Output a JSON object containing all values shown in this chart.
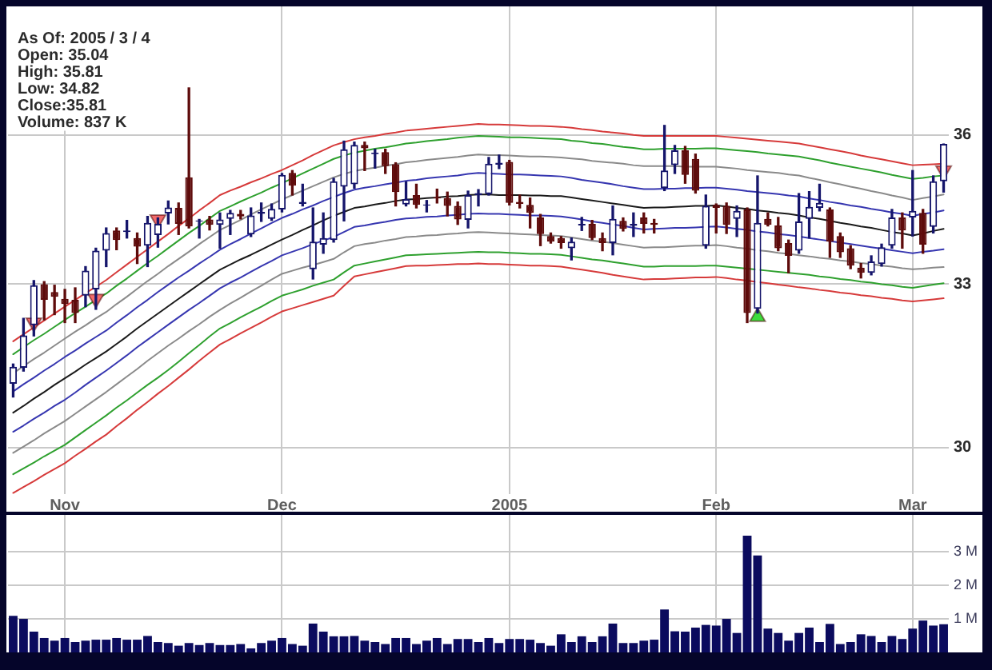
{
  "chart_data": [
    {
      "type": "candlestick",
      "categories": [
        null,
        null,
        null,
        null,
        null,
        "Nov",
        null,
        null,
        null,
        null,
        null,
        null,
        null,
        null,
        null,
        null,
        null,
        null,
        null,
        null,
        null,
        null,
        null,
        null,
        null,
        null,
        "Dec",
        null,
        null,
        null,
        null,
        null,
        null,
        null,
        null,
        null,
        null,
        null,
        null,
        null,
        null,
        null,
        null,
        null,
        null,
        null,
        null,
        null,
        "2005",
        null,
        null,
        null,
        null,
        null,
        null,
        null,
        null,
        null,
        null,
        null,
        null,
        null,
        null,
        null,
        null,
        null,
        null,
        null,
        "Feb",
        null,
        null,
        null,
        null,
        null,
        null,
        null,
        null,
        null,
        null,
        null,
        null,
        null,
        null,
        null,
        null,
        null,
        null,
        "Mar",
        null,
        null,
        null
      ],
      "ylim": [
        29.2,
        38.8
      ],
      "yticks": [
        30,
        33,
        36
      ],
      "log": true,
      "grid": true,
      "annotations": [
        "As Of: 2005 / 3 / 4",
        "Open: 35.04",
        "High: 35.81",
        "Low: 34.82",
        "Close:35.81",
        "Volume: 837 K"
      ],
      "series": [
        {
          "ohlc": [
            [
              31.14,
              31.5,
              30.9,
              31.45
            ],
            [
              31.43,
              32.35,
              31.37,
              32.03
            ],
            [
              32.22,
              33.07,
              32.02,
              32.98
            ],
            [
              33.0,
              33.05,
              32.32,
              32.7
            ],
            [
              32.85,
              32.98,
              32.42,
              32.76
            ],
            [
              32.72,
              32.9,
              32.27,
              32.62
            ],
            [
              32.7,
              32.93,
              32.27,
              32.45
            ],
            [
              32.78,
              33.34,
              32.57,
              33.26
            ],
            [
              32.9,
              33.7,
              32.52,
              33.65
            ],
            [
              33.65,
              34.1,
              33.34,
              34.0
            ],
            [
              34.05,
              34.1,
              33.67,
              33.86
            ],
            [
              34.02,
              34.25,
              33.9,
              34.05
            ],
            [
              33.9,
              34.0,
              33.4,
              33.73
            ],
            [
              33.75,
              34.33,
              33.34,
              34.2
            ],
            [
              33.96,
              34.3,
              33.72,
              34.18
            ],
            [
              34.39,
              34.64,
              34.18,
              34.51
            ],
            [
              34.5,
              34.6,
              33.97,
              34.18
            ],
            [
              35.12,
              37.0,
              34.1,
              34.13
            ],
            [
              34.23,
              34.27,
              33.9,
              34.25
            ],
            [
              34.27,
              34.33,
              34.06,
              34.16
            ],
            [
              34.16,
              34.4,
              33.7,
              34.27
            ],
            [
              34.28,
              34.45,
              33.97,
              34.4
            ],
            [
              34.38,
              34.45,
              34.28,
              34.33
            ],
            [
              33.97,
              34.5,
              33.93,
              34.35
            ],
            [
              34.38,
              34.6,
              34.23,
              34.42
            ],
            [
              34.28,
              34.58,
              34.25,
              34.48
            ],
            [
              34.47,
              35.2,
              34.42,
              35.17
            ],
            [
              35.21,
              35.26,
              34.76,
              34.95
            ],
            [
              34.58,
              34.98,
              34.54,
              34.62
            ],
            [
              33.29,
              34.5,
              33.1,
              33.83
            ],
            [
              33.77,
              34.4,
              33.6,
              33.9
            ],
            [
              33.86,
              35.1,
              33.82,
              35.04
            ],
            [
              34.93,
              35.87,
              34.24,
              35.7
            ],
            [
              34.98,
              35.85,
              34.9,
              35.79
            ],
            [
              35.79,
              35.85,
              35.26,
              35.72
            ],
            [
              35.6,
              35.7,
              35.31,
              35.63
            ],
            [
              35.64,
              35.7,
              35.2,
              35.35
            ],
            [
              35.39,
              35.42,
              34.54,
              34.82
            ],
            [
              34.57,
              35.03,
              34.54,
              34.68
            ],
            [
              34.76,
              34.98,
              34.5,
              34.56
            ],
            [
              34.55,
              34.65,
              34.42,
              34.57
            ],
            [
              34.72,
              34.88,
              34.6,
              34.69
            ],
            [
              34.7,
              34.82,
              34.34,
              34.54
            ],
            [
              34.54,
              34.62,
              34.17,
              34.27
            ],
            [
              34.26,
              34.84,
              34.1,
              34.76
            ],
            [
              34.76,
              34.87,
              34.54,
              34.8
            ],
            [
              34.78,
              35.53,
              34.76,
              35.4
            ],
            [
              35.38,
              35.58,
              35.3,
              35.42
            ],
            [
              35.44,
              35.47,
              34.56,
              34.6
            ],
            [
              34.62,
              34.76,
              34.5,
              34.58
            ],
            [
              34.56,
              34.7,
              34.1,
              34.4
            ],
            [
              34.31,
              34.37,
              33.75,
              33.98
            ],
            [
              33.94,
              34.0,
              33.8,
              33.83
            ],
            [
              33.9,
              33.93,
              33.7,
              33.8
            ],
            [
              33.7,
              33.9,
              33.47,
              33.83
            ],
            [
              34.15,
              34.31,
              34.05,
              34.18
            ],
            [
              34.18,
              34.25,
              33.87,
              33.9
            ],
            [
              33.9,
              34.0,
              33.65,
              33.8
            ],
            [
              33.8,
              34.54,
              33.57,
              34.28
            ],
            [
              34.24,
              34.3,
              34.04,
              34.08
            ],
            [
              34.14,
              34.4,
              33.93,
              34.18
            ],
            [
              34.31,
              34.4,
              34.0,
              34.18
            ],
            [
              34.2,
              34.27,
              34.0,
              34.16
            ],
            [
              34.9,
              36.2,
              34.85,
              35.26
            ],
            [
              35.37,
              35.78,
              35.2,
              35.68
            ],
            [
              35.68,
              35.76,
              35.0,
              35.17
            ],
            [
              35.5,
              35.6,
              34.8,
              34.85
            ],
            [
              33.75,
              34.76,
              33.7,
              34.54
            ],
            [
              34.56,
              34.58,
              34.0,
              34.5
            ],
            [
              34.54,
              34.6,
              33.99,
              34.16
            ],
            [
              34.28,
              34.54,
              33.93,
              34.44
            ],
            [
              34.47,
              34.5,
              32.27,
              32.45
            ],
            [
              32.53,
              35.15,
              32.45,
              34.2
            ],
            [
              34.28,
              34.4,
              34.14,
              34.16
            ],
            [
              34.15,
              34.31,
              33.65,
              33.7
            ],
            [
              33.8,
              33.86,
              33.22,
              33.55
            ],
            [
              33.65,
              34.79,
              33.6,
              34.23
            ],
            [
              34.28,
              34.83,
              33.9,
              34.52
            ],
            [
              34.5,
              34.98,
              34.44,
              34.6
            ],
            [
              34.47,
              34.5,
              33.52,
              33.83
            ],
            [
              33.94,
              34.0,
              33.52,
              33.62
            ],
            [
              33.7,
              33.75,
              33.3,
              33.36
            ],
            [
              33.32,
              33.4,
              33.12,
              33.22
            ],
            [
              33.22,
              33.55,
              33.18,
              33.44
            ],
            [
              33.39,
              33.78,
              33.35,
              33.72
            ],
            [
              33.75,
              34.47,
              33.7,
              34.31
            ],
            [
              34.31,
              34.4,
              33.7,
              34.05
            ],
            [
              34.31,
              35.26,
              33.94,
              34.44
            ],
            [
              34.4,
              34.47,
              33.6,
              33.77
            ],
            [
              34.12,
              35.15,
              34.0,
              35.04
            ],
            [
              35.04,
              35.81,
              34.82,
              35.81
            ]
          ],
          "colors": [
            "#15156b",
            "#15156b",
            "#15156b",
            "#5e0b0b",
            "#5e0b0b",
            "#5e0b0b",
            "#5e0b0b",
            "#15156b",
            "#15156b",
            "#15156b",
            "#5e0b0b",
            "#15156b",
            "#5e0b0b",
            "#15156b",
            "#15156b",
            "#15156b",
            "#5e0b0b",
            "#5e0b0b",
            "#15156b",
            "#5e0b0b",
            "#15156b",
            "#15156b",
            "#5e0b0b",
            "#15156b",
            "#15156b",
            "#15156b",
            "#15156b",
            "#5e0b0b",
            "#15156b",
            "#15156b",
            "#15156b",
            "#15156b",
            "#15156b",
            "#15156b",
            "#5e0b0b",
            "#15156b",
            "#5e0b0b",
            "#5e0b0b",
            "#15156b",
            "#5e0b0b",
            "#15156b",
            "#5e0b0b",
            "#5e0b0b",
            "#5e0b0b",
            "#15156b",
            "#15156b",
            "#15156b",
            "#15156b",
            "#5e0b0b",
            "#5e0b0b",
            "#5e0b0b",
            "#5e0b0b",
            "#5e0b0b",
            "#5e0b0b",
            "#15156b",
            "#15156b",
            "#5e0b0b",
            "#5e0b0b",
            "#15156b",
            "#5e0b0b",
            "#15156b",
            "#5e0b0b",
            "#5e0b0b",
            "#15156b",
            "#15156b",
            "#5e0b0b",
            "#5e0b0b",
            "#15156b",
            "#5e0b0b",
            "#5e0b0b",
            "#15156b",
            "#5e0b0b",
            "#15156b",
            "#5e0b0b",
            "#5e0b0b",
            "#5e0b0b",
            "#15156b",
            "#15156b",
            "#15156b",
            "#5e0b0b",
            "#5e0b0b",
            "#5e0b0b",
            "#5e0b0b",
            "#15156b",
            "#15156b",
            "#15156b",
            "#5e0b0b",
            "#15156b",
            "#5e0b0b",
            "#15156b",
            "#15156b"
          ]
        },
        {
          "type": "line",
          "color": "#d63a3a",
          "values": [
            31.92,
            32.05,
            32.18,
            32.31,
            32.44,
            32.57,
            32.7,
            32.83,
            32.95,
            33.08,
            33.23,
            33.38,
            33.53,
            33.68,
            33.83,
            33.98,
            34.14,
            34.29,
            34.45,
            34.6,
            34.76,
            34.85,
            34.93,
            35.02,
            35.1,
            35.19,
            35.27,
            35.37,
            35.47,
            35.58,
            35.68,
            35.78,
            35.85,
            35.91,
            35.95,
            35.98,
            36.02,
            36.05,
            36.09,
            36.11,
            36.13,
            36.15,
            36.17,
            36.19,
            36.21,
            36.23,
            36.22,
            36.22,
            36.21,
            36.2,
            36.19,
            36.19,
            36.18,
            36.17,
            36.15,
            36.12,
            36.1,
            36.07,
            36.05,
            36.03,
            36.0,
            35.98,
            35.98,
            35.98,
            35.98,
            35.98,
            35.98,
            35.98,
            35.98,
            35.96,
            35.94,
            35.92,
            35.9,
            35.88,
            35.86,
            35.84,
            35.82,
            35.78,
            35.74,
            35.7,
            35.66,
            35.62,
            35.57,
            35.53,
            35.49,
            35.45,
            35.41,
            35.37,
            35.38,
            35.39,
            35.4
          ]
        },
        {
          "type": "line",
          "color": "#2ea02e",
          "values": [
            31.68,
            31.81,
            31.94,
            32.06,
            32.19,
            32.32,
            32.45,
            32.57,
            32.7,
            32.82,
            32.97,
            33.11,
            33.26,
            33.41,
            33.55,
            33.7,
            33.85,
            34.0,
            34.14,
            34.29,
            34.44,
            34.53,
            34.63,
            34.72,
            34.81,
            34.91,
            35.0,
            35.1,
            35.2,
            35.3,
            35.4,
            35.5,
            35.57,
            35.63,
            35.67,
            35.71,
            35.74,
            35.78,
            35.82,
            35.84,
            35.87,
            35.89,
            35.91,
            35.94,
            35.96,
            35.98,
            35.97,
            35.96,
            35.95,
            35.95,
            35.94,
            35.93,
            35.92,
            35.91,
            35.88,
            35.86,
            35.83,
            35.81,
            35.78,
            35.75,
            35.73,
            35.7,
            35.7,
            35.71,
            35.71,
            35.71,
            35.71,
            35.72,
            35.72,
            35.7,
            35.68,
            35.66,
            35.64,
            35.61,
            35.59,
            35.57,
            35.55,
            35.51,
            35.47,
            35.42,
            35.38,
            35.34,
            35.3,
            35.26,
            35.22,
            35.17,
            35.13,
            35.09,
            35.11,
            35.14,
            35.16
          ]
        },
        {
          "type": "line",
          "color": "#8a8a8a",
          "values": [
            31.33,
            31.46,
            31.59,
            31.71,
            31.84,
            31.97,
            32.1,
            32.22,
            32.35,
            32.47,
            32.62,
            32.76,
            32.91,
            33.06,
            33.2,
            33.35,
            33.49,
            33.63,
            33.78,
            33.92,
            34.06,
            34.16,
            34.26,
            34.37,
            34.47,
            34.57,
            34.67,
            34.76,
            34.85,
            34.94,
            35.03,
            35.12,
            35.19,
            35.25,
            35.29,
            35.32,
            35.36,
            35.39,
            35.43,
            35.45,
            35.48,
            35.5,
            35.52,
            35.54,
            35.57,
            35.59,
            35.58,
            35.58,
            35.57,
            35.56,
            35.55,
            35.55,
            35.54,
            35.53,
            35.51,
            35.49,
            35.46,
            35.44,
            35.42,
            35.4,
            35.37,
            35.35,
            35.35,
            35.35,
            35.35,
            35.34,
            35.34,
            35.34,
            35.34,
            35.32,
            35.3,
            35.27,
            35.25,
            35.23,
            35.21,
            35.18,
            35.16,
            35.11,
            35.07,
            35.02,
            34.98,
            34.93,
            34.89,
            34.84,
            34.8,
            34.75,
            34.71,
            34.66,
            34.7,
            34.73,
            34.77
          ]
        },
        {
          "type": "line",
          "color": "#3636b0",
          "values": [
            31.0,
            31.13,
            31.25,
            31.38,
            31.5,
            31.63,
            31.75,
            31.88,
            32.0,
            32.12,
            32.27,
            32.41,
            32.56,
            32.7,
            32.85,
            32.99,
            33.13,
            33.26,
            33.4,
            33.53,
            33.67,
            33.78,
            33.88,
            33.99,
            34.09,
            34.2,
            34.3,
            34.38,
            34.47,
            34.55,
            34.64,
            34.72,
            34.8,
            34.87,
            34.91,
            34.94,
            34.98,
            35.01,
            35.05,
            35.07,
            35.1,
            35.12,
            35.14,
            35.16,
            35.19,
            35.21,
            35.2,
            35.19,
            35.18,
            35.18,
            35.17,
            35.16,
            35.15,
            35.14,
            35.11,
            35.07,
            35.04,
            35.01,
            34.98,
            34.94,
            34.91,
            34.88,
            34.88,
            34.89,
            34.89,
            34.9,
            34.9,
            34.91,
            34.91,
            34.89,
            34.87,
            34.84,
            34.82,
            34.8,
            34.78,
            34.75,
            34.73,
            34.69,
            34.66,
            34.62,
            34.59,
            34.55,
            34.52,
            34.48,
            34.45,
            34.41,
            34.38,
            34.34,
            34.38,
            34.41,
            34.45
          ]
        },
        {
          "type": "line",
          "color": "#1a1a1a",
          "values": [
            30.62,
            30.74,
            30.87,
            30.99,
            31.12,
            31.24,
            31.36,
            31.49,
            31.61,
            31.73,
            31.87,
            32.01,
            32.16,
            32.3,
            32.44,
            32.58,
            32.72,
            32.86,
            33.0,
            33.14,
            33.28,
            33.38,
            33.48,
            33.57,
            33.67,
            33.77,
            33.87,
            33.96,
            34.06,
            34.15,
            34.25,
            34.34,
            34.42,
            34.5,
            34.53,
            34.57,
            34.6,
            34.64,
            34.67,
            34.68,
            34.7,
            34.71,
            34.73,
            34.74,
            34.76,
            34.77,
            34.77,
            34.76,
            34.76,
            34.76,
            34.75,
            34.75,
            34.74,
            34.74,
            34.71,
            34.68,
            34.65,
            34.62,
            34.59,
            34.56,
            34.53,
            34.5,
            34.51,
            34.51,
            34.52,
            34.53,
            34.54,
            34.54,
            34.55,
            34.53,
            34.5,
            34.48,
            34.45,
            34.43,
            34.4,
            34.38,
            34.35,
            34.31,
            34.28,
            34.24,
            34.2,
            34.17,
            34.13,
            34.1,
            34.06,
            34.02,
            33.99,
            33.95,
            33.99,
            34.04,
            34.08
          ]
        },
        {
          "type": "line",
          "color": "#3636b0",
          "values": [
            30.28,
            30.39,
            30.51,
            30.62,
            30.74,
            30.85,
            30.98,
            31.12,
            31.25,
            31.38,
            31.52,
            31.66,
            31.81,
            31.95,
            32.09,
            32.23,
            32.37,
            32.51,
            32.64,
            32.78,
            32.92,
            33.03,
            33.13,
            33.24,
            33.35,
            33.45,
            33.56,
            33.63,
            33.7,
            33.78,
            33.85,
            33.92,
            34.02,
            34.12,
            34.15,
            34.19,
            34.22,
            34.26,
            34.29,
            34.3,
            34.32,
            34.33,
            34.35,
            34.36,
            34.38,
            34.39,
            34.38,
            34.38,
            34.37,
            34.36,
            34.35,
            34.35,
            34.34,
            34.33,
            34.3,
            34.27,
            34.23,
            34.2,
            34.17,
            34.14,
            34.1,
            34.07,
            34.08,
            34.09,
            34.1,
            34.1,
            34.11,
            34.12,
            34.13,
            34.11,
            34.08,
            34.06,
            34.03,
            34.01,
            33.98,
            33.96,
            33.93,
            33.9,
            33.87,
            33.84,
            33.81,
            33.78,
            33.75,
            33.72,
            33.69,
            33.66,
            33.63,
            33.6,
            33.63,
            33.65,
            33.68
          ]
        },
        {
          "type": "line",
          "color": "#8a8a8a",
          "values": [
            29.91,
            30.02,
            30.13,
            30.25,
            30.36,
            30.47,
            30.6,
            30.73,
            30.86,
            30.99,
            31.13,
            31.27,
            31.41,
            31.56,
            31.7,
            31.84,
            31.97,
            32.11,
            32.24,
            32.38,
            32.51,
            32.63,
            32.74,
            32.86,
            32.97,
            33.09,
            33.2,
            33.26,
            33.32,
            33.37,
            33.43,
            33.49,
            33.62,
            33.74,
            33.78,
            33.81,
            33.85,
            33.88,
            33.92,
            33.93,
            33.95,
            33.96,
            33.98,
            33.99,
            34.01,
            34.02,
            34.01,
            34.0,
            33.99,
            33.98,
            33.97,
            33.96,
            33.95,
            33.94,
            33.91,
            33.88,
            33.85,
            33.83,
            33.8,
            33.77,
            33.74,
            33.71,
            33.72,
            33.72,
            33.73,
            33.74,
            33.75,
            33.75,
            33.76,
            33.74,
            33.71,
            33.69,
            33.66,
            33.64,
            33.61,
            33.59,
            33.56,
            33.54,
            33.51,
            33.49,
            33.46,
            33.44,
            33.41,
            33.39,
            33.36,
            33.34,
            33.31,
            33.29,
            33.3,
            33.32,
            33.33
          ]
        },
        {
          "type": "line",
          "color": "#2ea02e",
          "values": [
            29.54,
            29.64,
            29.74,
            29.85,
            29.95,
            30.05,
            30.18,
            30.31,
            30.44,
            30.57,
            30.71,
            30.84,
            30.98,
            31.12,
            31.25,
            31.39,
            31.54,
            31.7,
            31.85,
            32.01,
            32.16,
            32.26,
            32.37,
            32.47,
            32.57,
            32.68,
            32.78,
            32.84,
            32.9,
            32.97,
            33.03,
            33.09,
            33.23,
            33.36,
            33.4,
            33.44,
            33.48,
            33.52,
            33.56,
            33.57,
            33.58,
            33.59,
            33.6,
            33.61,
            33.62,
            33.63,
            33.62,
            33.62,
            33.61,
            33.6,
            33.59,
            33.59,
            33.58,
            33.57,
            33.54,
            33.51,
            33.48,
            33.46,
            33.43,
            33.4,
            33.37,
            33.34,
            33.34,
            33.35,
            33.35,
            33.35,
            33.35,
            33.36,
            33.36,
            33.34,
            33.32,
            33.3,
            33.28,
            33.26,
            33.24,
            33.22,
            33.2,
            33.18,
            33.15,
            33.13,
            33.1,
            33.08,
            33.05,
            33.03,
            33.0,
            32.98,
            32.95,
            32.93,
            32.96,
            32.99,
            33.02
          ]
        },
        {
          "type": "line",
          "color": "#d63a3a",
          "values": [
            29.22,
            29.32,
            29.42,
            29.53,
            29.63,
            29.73,
            29.86,
            29.98,
            30.11,
            30.23,
            30.38,
            30.52,
            30.67,
            30.81,
            30.96,
            31.1,
            31.25,
            31.4,
            31.56,
            31.71,
            31.86,
            31.96,
            32.07,
            32.17,
            32.27,
            32.38,
            32.48,
            32.54,
            32.6,
            32.66,
            32.72,
            32.78,
            32.97,
            33.15,
            33.19,
            33.23,
            33.27,
            33.31,
            33.35,
            33.36,
            33.36,
            33.37,
            33.38,
            33.39,
            33.39,
            33.4,
            33.39,
            33.39,
            33.38,
            33.37,
            33.36,
            33.36,
            33.35,
            33.34,
            33.31,
            33.28,
            33.25,
            33.22,
            33.18,
            33.15,
            33.12,
            33.09,
            33.1,
            33.1,
            33.11,
            33.12,
            33.13,
            33.13,
            33.14,
            33.12,
            33.09,
            33.07,
            33.04,
            33.02,
            32.99,
            32.97,
            32.94,
            32.92,
            32.89,
            32.87,
            32.84,
            32.82,
            32.79,
            32.77,
            32.74,
            32.72,
            32.69,
            32.67,
            32.69,
            32.71,
            32.73
          ]
        },
        {
          "type": "scatter",
          "color": "#f26b6b",
          "marker": "triangle",
          "values": [
            null,
            null,
            32.27,
            null,
            null,
            null,
            null,
            null,
            32.72,
            null,
            null,
            null,
            null,
            null,
            34.27,
            null,
            null,
            null,
            null,
            null,
            null,
            null,
            null,
            null,
            null,
            null,
            null,
            null,
            null,
            null,
            null,
            null,
            null,
            null,
            null,
            null,
            null,
            null,
            null,
            null,
            null,
            null,
            null,
            null,
            null,
            null,
            null,
            null,
            null,
            null,
            null,
            null,
            null,
            null,
            null,
            null,
            null,
            null,
            null,
            null,
            null,
            null,
            null,
            null,
            null,
            null,
            null,
            null,
            null,
            null,
            null,
            null,
            null,
            null,
            null,
            null,
            null,
            null,
            null,
            null,
            null,
            null,
            null,
            null,
            null,
            null,
            null,
            null,
            null,
            null,
            35.26
          ]
        },
        {
          "type": "scatter",
          "color": "#3ddc3d",
          "marker": "triangle",
          "values": [
            null,
            null,
            null,
            null,
            null,
            null,
            null,
            null,
            null,
            null,
            null,
            null,
            null,
            null,
            null,
            null,
            null,
            null,
            null,
            null,
            null,
            null,
            null,
            null,
            null,
            null,
            null,
            null,
            null,
            null,
            null,
            null,
            null,
            null,
            null,
            null,
            null,
            null,
            null,
            null,
            null,
            null,
            null,
            null,
            null,
            null,
            null,
            null,
            null,
            null,
            null,
            null,
            null,
            null,
            null,
            null,
            null,
            null,
            null,
            null,
            null,
            null,
            null,
            null,
            null,
            null,
            null,
            null,
            null,
            null,
            null,
            null,
            32.38,
            null,
            null,
            null,
            null,
            null,
            null,
            null,
            null,
            null,
            null,
            null,
            null,
            null,
            null,
            null,
            null,
            null,
            null
          ]
        }
      ]
    },
    {
      "type": "bar",
      "color": "#0b0b5e",
      "categories": [
        null,
        null,
        null,
        null,
        null,
        null,
        null,
        null,
        null,
        null,
        null,
        null,
        null,
        null,
        null,
        null,
        null,
        null,
        null,
        null,
        null,
        null,
        null,
        null,
        null,
        null,
        null,
        null,
        null,
        null,
        null,
        null,
        null,
        null,
        null,
        null,
        null,
        null,
        null,
        null,
        null,
        null,
        null,
        null,
        null,
        null,
        null,
        null,
        null,
        null,
        null,
        null,
        null,
        null,
        null,
        null,
        null,
        null,
        null,
        null,
        null,
        null,
        null,
        null,
        null,
        null,
        null,
        null,
        null,
        null,
        null,
        null,
        null,
        null,
        null,
        null,
        null,
        null,
        null,
        null,
        null,
        null,
        null,
        null,
        null,
        null,
        null,
        null,
        null,
        null,
        null
      ],
      "ylim": [
        0,
        4.1
      ],
      "yticks": [
        {
          "value": 1,
          "label": "1 M"
        },
        {
          "value": 2,
          "label": "2 M"
        },
        {
          "value": 3,
          "label": "3 M"
        }
      ],
      "grid": true,
      "tick_labels": "y",
      "values": [
        1.09,
        1.0,
        0.62,
        0.43,
        0.35,
        0.43,
        0.31,
        0.35,
        0.38,
        0.38,
        0.43,
        0.38,
        0.38,
        0.49,
        0.31,
        0.28,
        0.2,
        0.28,
        0.22,
        0.28,
        0.22,
        0.22,
        0.25,
        0.12,
        0.28,
        0.35,
        0.43,
        0.25,
        0.2,
        0.86,
        0.62,
        0.48,
        0.48,
        0.49,
        0.35,
        0.31,
        0.25,
        0.43,
        0.43,
        0.25,
        0.35,
        0.43,
        0.25,
        0.4,
        0.4,
        0.31,
        0.43,
        0.28,
        0.4,
        0.4,
        0.38,
        0.28,
        0.2,
        0.54,
        0.31,
        0.48,
        0.31,
        0.48,
        0.86,
        0.28,
        0.28,
        0.35,
        0.38,
        1.28,
        0.63,
        0.62,
        0.74,
        0.82,
        0.8,
        1.0,
        0.58,
        3.48,
        2.89,
        0.71,
        0.58,
        0.35,
        0.58,
        0.74,
        0.31,
        0.85,
        0.25,
        0.31,
        0.54,
        0.49,
        0.31,
        0.49,
        0.4,
        0.71,
        0.95,
        0.8,
        0.84
      ]
    }
  ]
}
